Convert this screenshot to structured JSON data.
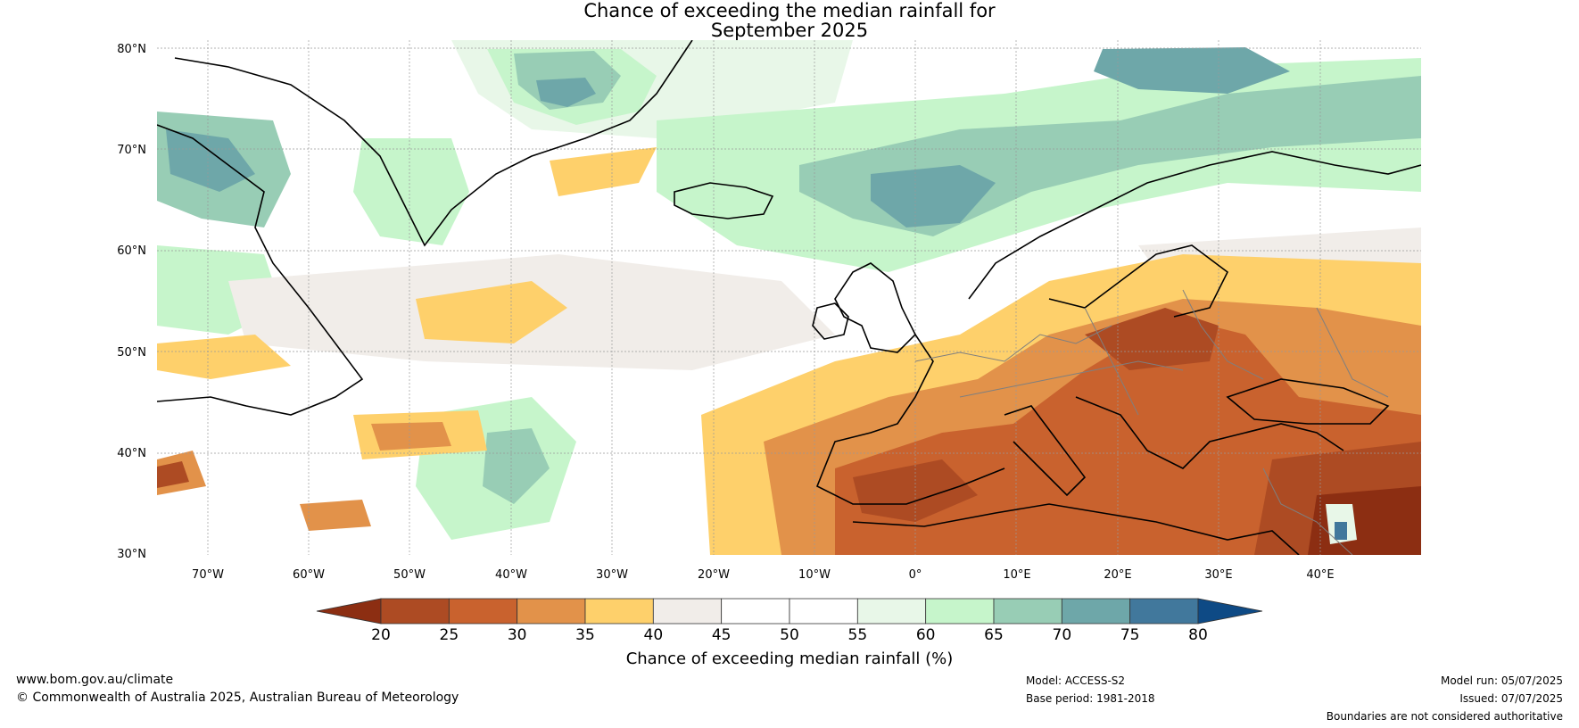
{
  "map": {
    "title_line1": "Chance of exceeding the median rainfall for",
    "title_line2": "September 2025",
    "latitude_labels": [
      "80°N",
      "70°N",
      "60°N",
      "50°N",
      "40°N",
      "30°N"
    ],
    "longitude_labels": [
      "70°W",
      "60°W",
      "50°W",
      "40°W",
      "30°W",
      "20°W",
      "10°W",
      "0°",
      "10°E",
      "20°E",
      "30°E",
      "40°E"
    ],
    "extent": {
      "lon_min": -75,
      "lon_max": 50,
      "lat_min": 30,
      "lat_max": 81
    }
  },
  "colorbar": {
    "ticks": [
      "20",
      "25",
      "30",
      "35",
      "40",
      "45",
      "50",
      "55",
      "60",
      "65",
      "70",
      "75",
      "80"
    ],
    "colors": [
      "#ad4b23",
      "#c9622e",
      "#e2924a",
      "#fed06b",
      "#f1ede9",
      "#ffffff",
      "#ffffff",
      "#e8f7e8",
      "#c6f5cb",
      "#98cdb5",
      "#6ea7a9",
      "#41789c"
    ],
    "under_color": "#8c2e12",
    "over_color": "#0e4a85",
    "label": "Chance of exceeding median rainfall (%)"
  },
  "footer": {
    "website": "www.bom.gov.au/climate",
    "copyright": "© Commonwealth of Australia 2025, Australian Bureau of Meteorology",
    "model": "Model: ACCESS-S2",
    "base_period": "Base period: 1981-2018",
    "model_run": "Model run: 05/07/2025",
    "issued": "Issued: 07/07/2025",
    "disclaimer": "Boundaries are not considered authoritative"
  }
}
